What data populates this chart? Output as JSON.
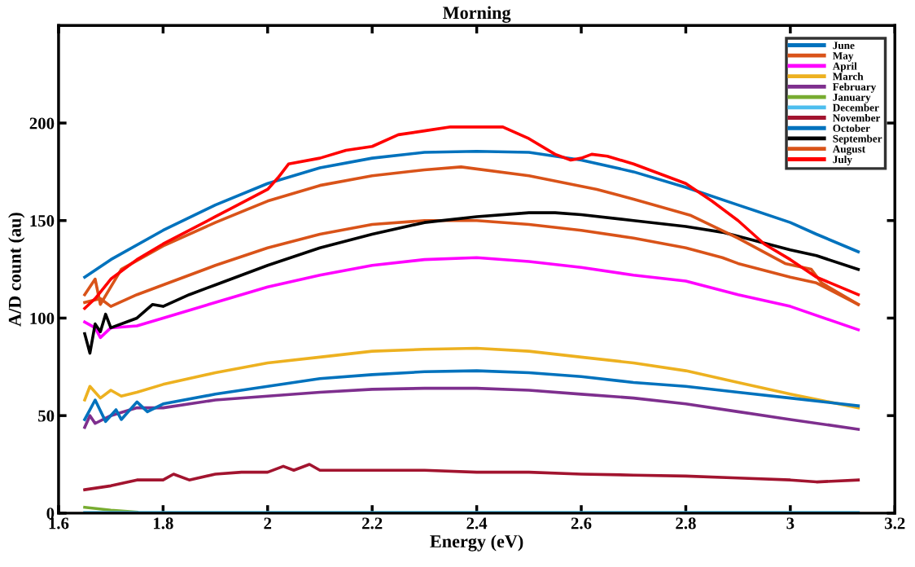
{
  "chart_data": {
    "type": "line",
    "title": "Morning",
    "xlabel": "Energy (eV)",
    "ylabel": "A/D count (au)",
    "xlim": [
      1.6,
      3.2
    ],
    "xticks": [
      1.6,
      1.8,
      2,
      2.2,
      2.4,
      2.6,
      2.8,
      3,
      3.2
    ],
    "ylim": [
      0,
      250
    ],
    "yticks": [
      0,
      50,
      100,
      150,
      200
    ],
    "grid": false,
    "legend": "top right",
    "line_style": "solid",
    "marker": "none",
    "series": [
      {
        "name": "June",
        "color": "#0072bd",
        "x": [
          1.65,
          1.7,
          1.8,
          1.9,
          2.0,
          2.1,
          2.2,
          2.3,
          2.4,
          2.5,
          2.6,
          2.7,
          2.8,
          2.9,
          3.0,
          3.05,
          3.13
        ],
        "values": [
          121,
          130,
          145,
          158,
          169,
          177,
          182,
          185,
          185.5,
          185,
          181,
          175,
          167,
          158,
          149,
          143,
          134
        ]
      },
      {
        "name": "May",
        "color": "#d95319",
        "x": [
          1.65,
          1.68,
          1.7,
          1.75,
          1.8,
          1.9,
          2.0,
          2.1,
          2.2,
          2.3,
          2.4,
          2.5,
          2.6,
          2.7,
          2.8,
          2.87,
          2.9,
          3.0,
          3.05,
          3.13
        ],
        "values": [
          108,
          110,
          106,
          112,
          117,
          127,
          136,
          143,
          148,
          150,
          150,
          148,
          145,
          141,
          136,
          131,
          128,
          121,
          118,
          107
        ]
      },
      {
        "name": "April",
        "color": "#ff00ff",
        "x": [
          1.65,
          1.67,
          1.68,
          1.7,
          1.75,
          1.8,
          1.9,
          2.0,
          2.1,
          2.2,
          2.3,
          2.4,
          2.5,
          2.6,
          2.7,
          2.8,
          2.9,
          3.0,
          3.13
        ],
        "values": [
          98,
          95,
          90,
          95,
          96,
          100,
          108,
          116,
          122,
          127,
          130,
          131,
          129,
          126,
          122,
          119,
          112,
          106,
          94
        ]
      },
      {
        "name": "March",
        "color": "#edb120",
        "x": [
          1.65,
          1.66,
          1.68,
          1.7,
          1.72,
          1.75,
          1.8,
          1.9,
          2.0,
          2.1,
          2.2,
          2.3,
          2.4,
          2.5,
          2.6,
          2.7,
          2.8,
          2.9,
          3.0,
          3.13
        ],
        "values": [
          58,
          65,
          59,
          63,
          60,
          62,
          66,
          72,
          77,
          80,
          83,
          84,
          84.5,
          83,
          80,
          77,
          73,
          67,
          61,
          54
        ]
      },
      {
        "name": "February",
        "color": "#7e2f8e",
        "x": [
          1.65,
          1.66,
          1.67,
          1.7,
          1.75,
          1.8,
          1.9,
          2.0,
          2.1,
          2.2,
          2.3,
          2.4,
          2.5,
          2.6,
          2.7,
          2.8,
          2.9,
          3.0,
          3.13
        ],
        "values": [
          44,
          50,
          46,
          50,
          54,
          54,
          58,
          60,
          62,
          63.5,
          64,
          64,
          63,
          61,
          59,
          56,
          52,
          48,
          43
        ]
      },
      {
        "name": "January",
        "color": "#77ac30",
        "x": [
          1.65,
          1.7,
          1.75
        ],
        "values": [
          3,
          1.5,
          0.5
        ]
      },
      {
        "name": "December",
        "color": "#4dbeee",
        "x": [
          1.65,
          2.0,
          2.4,
          2.8,
          3.13
        ],
        "values": [
          0.3,
          0.3,
          0.3,
          0.3,
          0.3
        ]
      },
      {
        "name": "November",
        "color": "#a2142f",
        "x": [
          1.65,
          1.7,
          1.75,
          1.8,
          1.82,
          1.85,
          1.9,
          1.95,
          2.0,
          2.03,
          2.05,
          2.08,
          2.1,
          2.2,
          2.3,
          2.4,
          2.5,
          2.6,
          2.7,
          2.8,
          2.9,
          3.0,
          3.05,
          3.13
        ],
        "values": [
          12,
          14,
          17,
          17,
          20,
          17,
          20,
          21,
          21,
          24,
          22,
          25,
          22,
          22,
          22,
          21,
          21,
          20,
          19.5,
          19,
          18,
          17,
          16,
          17
        ]
      },
      {
        "name": "October",
        "color": "#0072bd",
        "x": [
          1.65,
          1.67,
          1.69,
          1.71,
          1.72,
          1.75,
          1.77,
          1.8,
          1.9,
          2.0,
          2.1,
          2.2,
          2.3,
          2.4,
          2.5,
          2.6,
          2.7,
          2.8,
          2.9,
          3.0,
          3.13
        ],
        "values": [
          48,
          58,
          47,
          53,
          48,
          57,
          52,
          56,
          61,
          65,
          69,
          71,
          72.5,
          73,
          72,
          70,
          67,
          65,
          62,
          59,
          55
        ]
      },
      {
        "name": "September",
        "color": "#000000",
        "x": [
          1.65,
          1.66,
          1.67,
          1.68,
          1.69,
          1.7,
          1.75,
          1.78,
          1.8,
          1.85,
          1.9,
          2.0,
          2.1,
          2.2,
          2.3,
          2.4,
          2.5,
          2.55,
          2.6,
          2.7,
          2.8,
          2.87,
          2.9,
          3.0,
          3.05,
          3.13
        ],
        "values": [
          92,
          82,
          97,
          93,
          102,
          95,
          100,
          107,
          106,
          112,
          117,
          127,
          136,
          143,
          149,
          152,
          154,
          154,
          153,
          150,
          147,
          144,
          142,
          135,
          132,
          125
        ]
      },
      {
        "name": "August",
        "color": "#d95319",
        "x": [
          1.65,
          1.67,
          1.68,
          1.72,
          1.8,
          1.9,
          2.0,
          2.1,
          2.2,
          2.3,
          2.37,
          2.5,
          2.63,
          2.7,
          2.81,
          2.9,
          2.99,
          3.04,
          3.06,
          3.13
        ],
        "values": [
          112,
          120,
          107,
          125,
          137,
          149,
          160,
          168,
          173,
          176,
          177.5,
          173,
          166,
          161,
          152.6,
          141,
          128,
          125,
          118,
          107
        ]
      },
      {
        "name": "July",
        "color": "#ff0000",
        "x": [
          1.65,
          1.67,
          1.7,
          1.75,
          1.8,
          1.9,
          2.0,
          2.02,
          2.04,
          2.1,
          2.15,
          2.2,
          2.25,
          2.3,
          2.35,
          2.45,
          2.5,
          2.55,
          2.58,
          2.6,
          2.62,
          2.65,
          2.7,
          2.8,
          2.85,
          2.9,
          2.95,
          3.0,
          3.05,
          3.13
        ],
        "values": [
          105,
          110,
          120,
          130,
          138,
          152,
          166,
          172,
          179,
          182,
          186,
          188,
          194,
          196,
          198,
          198,
          192,
          184,
          181,
          182,
          184,
          183,
          179,
          169,
          160,
          150,
          138,
          130,
          121,
          112
        ]
      }
    ]
  }
}
